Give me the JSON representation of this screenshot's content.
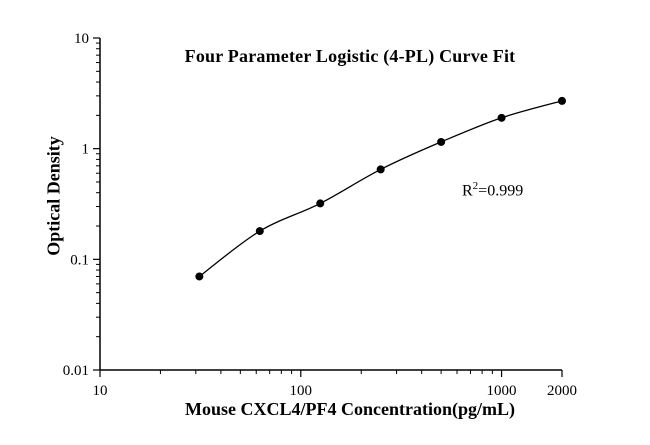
{
  "figure": {
    "title": "Four Parameter Logistic (4-PL) Curve Fit"
  },
  "chart_data": {
    "type": "scatter",
    "title": "Four Parameter Logistic (4-PL) Curve Fit",
    "xlabel": "Mouse CXCL4/PF4 Concentration(pg/mL)",
    "ylabel": "Optical Density",
    "x_scale": "log",
    "y_scale": "log",
    "xlim": [
      10,
      2000
    ],
    "ylim": [
      0.01,
      10
    ],
    "x_ticks": [
      10,
      100,
      1000,
      2000
    ],
    "x_tick_labels": [
      "10",
      "100",
      "1000",
      "2000"
    ],
    "y_ticks": [
      0.01,
      0.1,
      1,
      10
    ],
    "y_tick_labels": [
      "0.01",
      "0.1",
      "1",
      "10"
    ],
    "grid": false,
    "legend": "none",
    "curve": "4-PL fit line through points",
    "annotation": {
      "base": "R",
      "sup": "2",
      "rest": "=0.999"
    },
    "series": [
      {
        "name": "standard-curve-points",
        "x": [
          31.25,
          62.5,
          125,
          250,
          500,
          1000,
          2000
        ],
        "y": [
          0.07,
          0.18,
          0.32,
          0.65,
          1.15,
          1.9,
          2.7
        ]
      }
    ],
    "point_color": "#000000",
    "line_color": "#000000"
  }
}
